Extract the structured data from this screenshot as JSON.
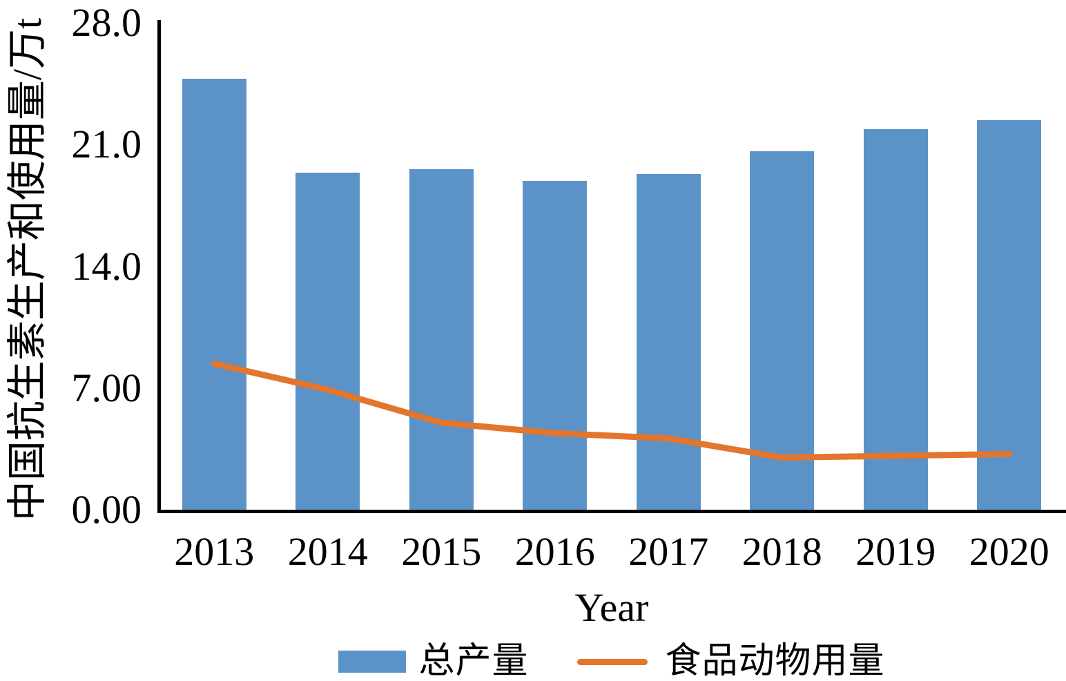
{
  "chart_data": {
    "type": "bar",
    "categories": [
      "2013",
      "2014",
      "2015",
      "2016",
      "2017",
      "2018",
      "2019",
      "2020"
    ],
    "series": [
      {
        "name": "总产量",
        "type": "bar",
        "color": "#5B92C8",
        "values": [
          24.8,
          19.4,
          19.6,
          18.9,
          19.3,
          20.6,
          21.9,
          22.4
        ]
      },
      {
        "name": "食品动物用量",
        "type": "line",
        "color": "#E2762E",
        "values": [
          8.4,
          6.9,
          5.0,
          4.4,
          4.1,
          3.0,
          3.1,
          3.2
        ]
      }
    ],
    "xlabel": "Year",
    "ylabel": "中国抗生素生产和使用量/万t",
    "ylim": [
      0,
      28
    ],
    "yticks": [
      "28.0",
      "21.0",
      "14.0",
      "7.00",
      "0.00"
    ],
    "grid": false,
    "legend_position": "bottom",
    "axis_color": "#000000",
    "text_color": "#000000"
  }
}
